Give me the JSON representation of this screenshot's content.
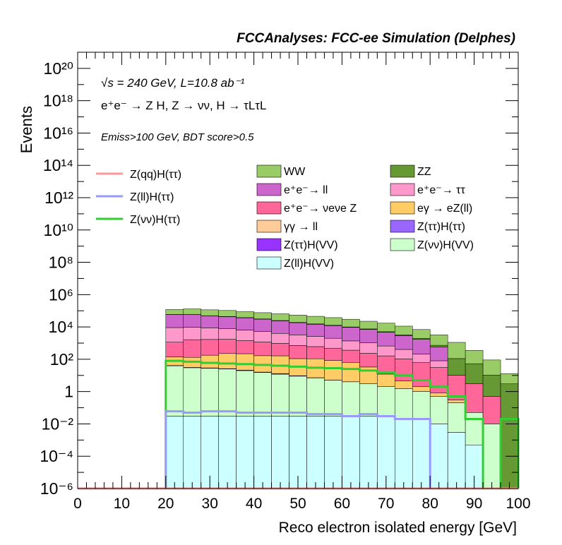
{
  "header": {
    "title": "FCCAnalyses: FCC-ee Simulation (Delphes)"
  },
  "annotations": {
    "energy_lumi": "√s = 240 GeV, L=10.8 ab⁻¹",
    "process": "e⁺e⁻ → Z H, Z → νν, H → τLτL",
    "selection": "Emiss>100 GeV, BDT score>0.5"
  },
  "legend": {
    "signal": [
      {
        "label": "Z(qq)H(ττ)",
        "color": "#ff9999"
      },
      {
        "label": "Z(ll)H(ττ)",
        "color": "#9999ff"
      },
      {
        "label": "Z(νν)H(ττ)",
        "color": "#33cc33"
      }
    ],
    "background": [
      {
        "label": "WW",
        "color": "#99cc66"
      },
      {
        "label": "ZZ",
        "color": "#669933"
      },
      {
        "label": "e⁺e⁻→ ll",
        "color": "#cc66cc"
      },
      {
        "label": "e⁺e⁻→ ττ",
        "color": "#ff99cc"
      },
      {
        "label": "e⁺e⁻→ νeνe Z",
        "color": "#ff6699"
      },
      {
        "label": "eγ → eZ(ll)",
        "color": "#ffcc66"
      },
      {
        "label": "γγ → ll",
        "color": "#ffcc99"
      },
      {
        "label": "Z(ττ)H(ττ)",
        "color": "#9966ff"
      },
      {
        "label": "Z(ττ)H(VV)",
        "color": "#9933ff"
      },
      {
        "label": "Z(νν)H(VV)",
        "color": "#ccffcc"
      },
      {
        "label": "Z(ll)H(VV)",
        "color": "#ccffff"
      }
    ]
  },
  "chart_data": {
    "type": "histogram-stacked",
    "xlabel": "Reco electron isolated energy [GeV]",
    "ylabel": "Events",
    "xlim": [
      0,
      100
    ],
    "ylim": [
      1e-06,
      1e+21
    ],
    "log_y": true,
    "x_ticks": [
      0,
      10,
      20,
      30,
      40,
      50,
      60,
      70,
      80,
      90,
      100
    ],
    "y_ticks": [
      "10⁻⁶",
      "10⁻⁴",
      "10⁻²",
      "1",
      "10²",
      "10⁴",
      "10⁶",
      "10⁸",
      "10¹⁰",
      "10¹²",
      "10¹⁴",
      "10¹⁶",
      "10¹⁸",
      "10²⁰"
    ],
    "bin_edges": [
      20,
      24,
      28,
      32,
      36,
      40,
      44,
      48,
      52,
      56,
      60,
      64,
      68,
      72,
      76,
      80,
      84,
      88,
      92,
      96,
      100
    ],
    "stack_order": [
      "Z(ll)H(VV)",
      "Z(νν)H(VV)",
      "Z(ττ)H(VV)",
      "Z(ττ)H(ττ)",
      "γγ → ll",
      "eγ → eZ(ll)",
      "e⁺e⁻→ νeνe Z",
      "e⁺e⁻→ ττ",
      "e⁺e⁻→ ll",
      "ZZ",
      "WW"
    ],
    "series": [
      {
        "name": "Z(ll)H(VV)",
        "values": [
          0.03,
          0.03,
          0.03,
          0.03,
          0.03,
          0.03,
          0.03,
          0.03,
          0.03,
          0.03,
          0.03,
          0.03,
          0.03,
          0.02,
          0.02,
          0.01,
          0.003,
          0.0005,
          0,
          0
        ]
      },
      {
        "name": "Z(νν)H(VV)",
        "values": [
          40,
          30,
          28,
          25,
          20,
          15,
          12,
          9,
          7,
          5,
          4,
          3,
          2,
          1.5,
          1,
          0.5,
          0.2,
          0.05,
          0.01,
          0
        ]
      },
      {
        "name": "Z(ττ)H(VV)",
        "values": [
          0.05,
          0.04,
          0.03,
          0.03,
          0.02,
          0.02,
          0.02,
          0.015,
          0.01,
          0.008,
          0.006,
          0.005,
          0,
          0,
          0,
          0,
          0,
          0,
          0,
          0
        ]
      },
      {
        "name": "Z(ττ)H(ττ)",
        "values": [
          0.03,
          0.02,
          0.02,
          0.015,
          0.01,
          0.008,
          0.006,
          0.004,
          0.003,
          0.002,
          0,
          0,
          0,
          0,
          0,
          0,
          0,
          0,
          0,
          0
        ]
      },
      {
        "name": "γγ → ll",
        "values": [
          1,
          1,
          1,
          1,
          1,
          1,
          1,
          0.5,
          0.2,
          0.05,
          0.02,
          0,
          0,
          0,
          0,
          0,
          0,
          0,
          0,
          0
        ]
      },
      {
        "name": "eγ → eZ(ll)",
        "values": [
          100,
          100,
          150,
          200,
          200,
          150,
          150,
          100,
          100,
          80,
          60,
          30,
          10,
          3,
          1,
          0.3,
          0.1,
          0,
          0,
          0
        ]
      },
      {
        "name": "e⁺e⁻→ νeνe Z",
        "values": [
          1000,
          1500,
          1500,
          1500,
          1200,
          1000,
          800,
          600,
          500,
          400,
          300,
          200,
          150,
          100,
          60,
          30,
          10,
          3,
          0.5,
          0
        ]
      },
      {
        "name": "e⁺e⁻→ ττ",
        "values": [
          8000,
          8000,
          7000,
          6000,
          5000,
          4000,
          3000,
          2500,
          2000,
          1500,
          1000,
          800,
          500,
          300,
          150,
          50,
          0,
          0,
          0,
          0
        ]
      },
      {
        "name": "e⁺e⁻→ ll",
        "values": [
          50000,
          50000,
          40000,
          35000,
          30000,
          25000,
          20000,
          15000,
          12000,
          10000,
          8000,
          6000,
          4000,
          2500,
          1500,
          500,
          0,
          0,
          0,
          0
        ]
      },
      {
        "name": "ZZ",
        "values": [
          500,
          800,
          1000,
          1500,
          1500,
          1200,
          1000,
          900,
          800,
          700,
          600,
          500,
          400,
          300,
          200,
          150,
          100,
          50,
          10,
          3
        ]
      },
      {
        "name": "WW",
        "values": [
          60000,
          70000,
          65000,
          60000,
          50000,
          45000,
          40000,
          35000,
          30000,
          25000,
          20000,
          15000,
          12000,
          8000,
          5000,
          2500,
          1000,
          300,
          80,
          10
        ]
      }
    ],
    "overlays": [
      {
        "name": "Z(νν)H(ττ)",
        "values": [
          80,
          70,
          60,
          55,
          50,
          45,
          40,
          35,
          30,
          28,
          25,
          20,
          15,
          10,
          5,
          2,
          0.5,
          0.02,
          1e-06,
          0.02
        ]
      },
      {
        "name": "Z(ll)H(ττ)",
        "values": [
          0.06,
          0.05,
          0.06,
          0.06,
          0.05,
          0.05,
          0.05,
          0.05,
          0.04,
          0.04,
          0.03,
          0.04,
          0.03,
          0.02,
          0.02,
          1e-06,
          0,
          0,
          0,
          0
        ]
      },
      {
        "name": "Z(qq)H(ττ)",
        "values": [
          0,
          0,
          0,
          1e-06,
          0,
          0,
          0,
          0,
          0,
          0,
          0,
          0,
          0,
          0,
          0,
          0,
          0,
          0,
          0,
          0
        ]
      }
    ]
  }
}
